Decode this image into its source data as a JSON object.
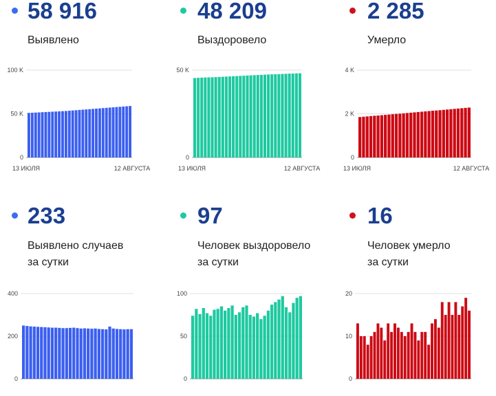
{
  "panels": [
    {
      "value": "58 916",
      "label_lines": [
        "Выявлено"
      ],
      "color": "#3b5ff0",
      "dot_color": "#3b6cf0",
      "chart_data": {
        "type": "bar",
        "ylim": [
          0,
          100000
        ],
        "yticks": [
          {
            "v": 0,
            "label": "0"
          },
          {
            "v": 50000,
            "label": "50 K"
          },
          {
            "v": 100000,
            "label": "100 K"
          }
        ],
        "xlabels": [
          "13 ИЮЛЯ",
          "12 АВГУСТА"
        ],
        "values": [
          51000,
          51200,
          51400,
          51600,
          51800,
          52000,
          52200,
          52400,
          52600,
          52800,
          53000,
          53200,
          53500,
          53800,
          54100,
          54400,
          54700,
          55000,
          55300,
          55600,
          55900,
          56200,
          56500,
          56800,
          57100,
          57400,
          57700,
          58000,
          58300,
          58600,
          58916
        ]
      }
    },
    {
      "value": "48 209",
      "label_lines": [
        "Выздоровело"
      ],
      "color": "#1ec9a0",
      "dot_color": "#1ec9a0",
      "chart_data": {
        "type": "bar",
        "ylim": [
          0,
          50000
        ],
        "yticks": [
          {
            "v": 0,
            "label": "0"
          },
          {
            "v": 50000,
            "label": "50 K"
          }
        ],
        "xlabels": [
          "13 ИЮЛЯ",
          "12 АВГУСТА"
        ],
        "values": [
          45500,
          45600,
          45700,
          45800,
          45850,
          45900,
          46000,
          46100,
          46200,
          46300,
          46400,
          46500,
          46600,
          46700,
          46800,
          46900,
          47000,
          47100,
          47200,
          47300,
          47400,
          47500,
          47600,
          47650,
          47700,
          47800,
          47900,
          48000,
          48050,
          48150,
          48209
        ]
      }
    },
    {
      "value": "2 285",
      "label_lines": [
        "Умерло"
      ],
      "color": "#cc0a14",
      "dot_color": "#d0101e",
      "chart_data": {
        "type": "bar",
        "ylim": [
          0,
          4000
        ],
        "yticks": [
          {
            "v": 0,
            "label": "0"
          },
          {
            "v": 2000,
            "label": "2 K"
          },
          {
            "v": 4000,
            "label": "4 K"
          }
        ],
        "xlabels": [
          "13 ИЮЛЯ",
          "12 АВГУСТА"
        ],
        "values": [
          1850,
          1865,
          1880,
          1895,
          1910,
          1920,
          1935,
          1950,
          1965,
          1980,
          1995,
          2005,
          2020,
          2035,
          2050,
          2065,
          2080,
          2095,
          2110,
          2125,
          2140,
          2150,
          2165,
          2180,
          2195,
          2210,
          2225,
          2240,
          2255,
          2270,
          2285
        ]
      }
    },
    {
      "value": "233",
      "label_lines": [
        "Выявлено случаев",
        "за сутки"
      ],
      "color": "#3b5ff0",
      "dot_color": "#3b6cf0",
      "chart_data": {
        "type": "bar",
        "ylim": [
          0,
          400
        ],
        "yticks": [
          {
            "v": 0,
            "label": "0"
          },
          {
            "v": 200,
            "label": "200"
          },
          {
            "v": 400,
            "label": "400"
          }
        ],
        "xlabels": [],
        "values": [
          250,
          248,
          246,
          245,
          244,
          243,
          242,
          241,
          240,
          240,
          239,
          238,
          238,
          239,
          240,
          238,
          236,
          237,
          236,
          235,
          236,
          234,
          233,
          232,
          245,
          236,
          234,
          233,
          232,
          233,
          233
        ]
      }
    },
    {
      "value": "97",
      "label_lines": [
        "Человек выздоровело",
        "за сутки"
      ],
      "color": "#1ec9a0",
      "dot_color": "#1ec9a0",
      "chart_data": {
        "type": "bar",
        "ylim": [
          0,
          100
        ],
        "yticks": [
          {
            "v": 0,
            "label": "0"
          },
          {
            "v": 50,
            "label": "50"
          },
          {
            "v": 100,
            "label": "100"
          }
        ],
        "xlabels": [],
        "values": [
          74,
          82,
          76,
          83,
          77,
          74,
          81,
          82,
          85,
          80,
          83,
          86,
          75,
          78,
          84,
          86,
          75,
          73,
          77,
          70,
          74,
          80,
          87,
          90,
          93,
          97,
          84,
          78,
          89,
          95,
          97
        ]
      }
    },
    {
      "value": "16",
      "label_lines": [
        "Человек умерло",
        "за сутки"
      ],
      "color": "#cc0a14",
      "dot_color": "#d0101e",
      "chart_data": {
        "type": "bar",
        "ylim": [
          0,
          20
        ],
        "yticks": [
          {
            "v": 0,
            "label": "0"
          },
          {
            "v": 10,
            "label": "10"
          },
          {
            "v": 20,
            "label": "20"
          }
        ],
        "xlabels": [],
        "values": [
          13,
          10,
          10,
          8,
          10,
          11,
          13,
          12,
          9,
          13,
          11,
          13,
          12,
          11,
          10,
          11,
          13,
          11,
          9,
          11,
          11,
          8,
          13,
          14,
          12,
          18,
          15,
          18,
          15,
          18,
          15,
          17,
          19,
          16
        ]
      }
    }
  ]
}
